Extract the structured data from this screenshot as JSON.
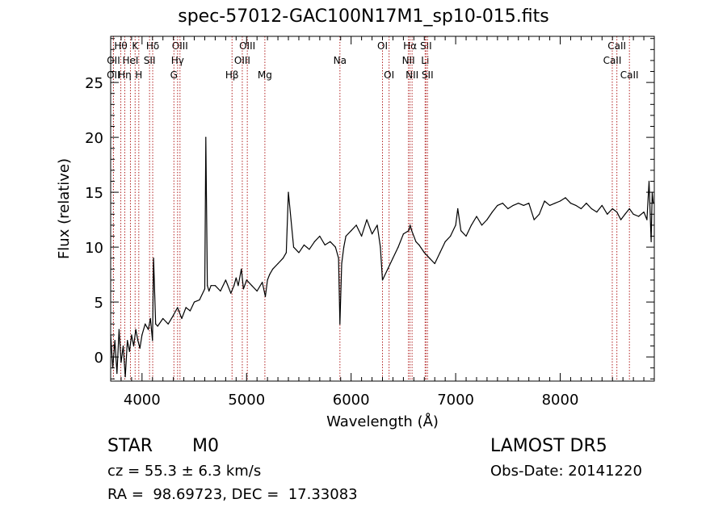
{
  "title": "spec-57012-GAC100N17M1_sp10-015.fits",
  "info": {
    "class": "STAR",
    "subclass": "M0",
    "survey": "LAMOST DR5",
    "cz": "cz = 55.3 ± 6.3 km/s",
    "obs_date": "Obs-Date: 20141220",
    "radec": "RA =  98.69723, DEC =  17.33083"
  },
  "colors": {
    "spectrum": "#000000",
    "line_markers": "#b22222",
    "axes": "#000000"
  },
  "chart_data": {
    "type": "line",
    "xlabel": "Wavelength (Å)",
    "ylabel": "Flux (relative)",
    "xlim": [
      3700,
      8900
    ],
    "ylim": [
      -2.2,
      29.2
    ],
    "xticks": [
      4000,
      5000,
      6000,
      7000,
      8000
    ],
    "yticks": [
      0,
      5,
      10,
      15,
      20,
      25
    ],
    "grid": false,
    "series": [
      {
        "x": [
          3700,
          3720,
          3740,
          3760,
          3780,
          3800,
          3820,
          3840,
          3860,
          3880,
          3900,
          3920,
          3940,
          3960,
          3980,
          4000,
          4030,
          4060,
          4080,
          4100,
          4110,
          4130,
          4150,
          4200,
          4250,
          4300,
          4340,
          4380,
          4420,
          4460,
          4500,
          4550,
          4600,
          4610,
          4625,
          4640,
          4660,
          4700,
          4750,
          4800,
          4850,
          4880,
          4900,
          4920,
          4950,
          4970,
          5000,
          5050,
          5100,
          5150,
          5180,
          5200,
          5220,
          5250,
          5300,
          5350,
          5380,
          5400,
          5450,
          5500,
          5550,
          5600,
          5650,
          5700,
          5750,
          5800,
          5850,
          5880,
          5893,
          5910,
          5930,
          5950,
          6000,
          6050,
          6100,
          6150,
          6200,
          6250,
          6280,
          6300,
          6350,
          6400,
          6450,
          6500,
          6550,
          6564,
          6580,
          6620,
          6650,
          6700,
          6750,
          6800,
          6850,
          6900,
          6950,
          7000,
          7020,
          7050,
          7100,
          7150,
          7200,
          7250,
          7300,
          7350,
          7400,
          7450,
          7500,
          7550,
          7600,
          7650,
          7700,
          7750,
          7800,
          7850,
          7900,
          7950,
          8000,
          8050,
          8100,
          8150,
          8200,
          8250,
          8300,
          8350,
          8400,
          8450,
          8500,
          8542,
          8580,
          8620,
          8662,
          8700,
          8750,
          8800,
          8830,
          8850,
          8870,
          8880,
          8890
        ],
        "y": [
          2.0,
          -1.0,
          1.5,
          -1.5,
          2.5,
          -0.5,
          1.0,
          -1.8,
          1.5,
          0.5,
          2.0,
          1.0,
          2.5,
          1.5,
          0.8,
          2.0,
          3.0,
          2.5,
          3.5,
          1.5,
          9.0,
          3.0,
          2.8,
          3.5,
          3.0,
          3.8,
          4.5,
          3.5,
          4.5,
          4.2,
          5.0,
          5.2,
          6.2,
          20.0,
          6.5,
          6.0,
          6.5,
          6.5,
          6.0,
          7.0,
          5.8,
          6.5,
          7.2,
          6.5,
          8.0,
          6.2,
          7.0,
          6.5,
          6.0,
          6.8,
          5.5,
          7.0,
          7.5,
          8.0,
          8.5,
          9.0,
          9.5,
          15.0,
          10.0,
          9.5,
          10.2,
          9.8,
          10.5,
          11.0,
          10.2,
          10.5,
          10.0,
          9.0,
          3.0,
          8.5,
          10.0,
          11.0,
          11.5,
          12.0,
          11.0,
          12.5,
          11.2,
          12.0,
          10.0,
          7.0,
          8.0,
          9.0,
          10.0,
          11.2,
          11.5,
          12.0,
          11.5,
          10.5,
          10.2,
          9.5,
          9.0,
          8.5,
          9.5,
          10.5,
          11.0,
          12.0,
          13.5,
          11.5,
          11.0,
          12.0,
          12.8,
          12.0,
          12.5,
          13.2,
          13.8,
          14.0,
          13.5,
          13.8,
          14.0,
          13.8,
          14.0,
          12.5,
          13.0,
          14.2,
          13.8,
          14.0,
          14.2,
          14.5,
          14.0,
          13.8,
          13.5,
          14.0,
          13.5,
          13.2,
          13.8,
          13.0,
          13.5,
          13.2,
          12.5,
          13.0,
          13.5,
          13.0,
          12.8,
          13.2,
          12.5,
          16.0,
          10.5,
          15.0,
          14.0
        ]
      }
    ],
    "line_markers": [
      {
        "label": "Hθ",
        "wl": 3797,
        "row": 0
      },
      {
        "label": "K",
        "wl": 3934,
        "row": 0
      },
      {
        "label": "Hδ",
        "wl": 4102,
        "row": 0
      },
      {
        "label": "OIII",
        "wl": 4363,
        "row": 0
      },
      {
        "label": "OIII",
        "wl": 5007,
        "row": 0
      },
      {
        "label": "OI",
        "wl": 6300,
        "row": 0
      },
      {
        "label": "Hα",
        "wl": 6563,
        "row": 0
      },
      {
        "label": "SII",
        "wl": 6716,
        "row": 0
      },
      {
        "label": "CaII",
        "wl": 8542,
        "row": 0
      },
      {
        "label": "OII",
        "wl": 3727,
        "row": 1
      },
      {
        "label": "HeI",
        "wl": 3889,
        "row": 1
      },
      {
        "label": "SII",
        "wl": 4072,
        "row": 1
      },
      {
        "label": "Hγ",
        "wl": 4340,
        "row": 1
      },
      {
        "label": "OIII",
        "wl": 4959,
        "row": 1
      },
      {
        "label": "Na",
        "wl": 5893,
        "row": 1
      },
      {
        "label": "NII",
        "wl": 6548,
        "row": 1
      },
      {
        "label": "Li",
        "wl": 6708,
        "row": 1
      },
      {
        "label": "CaII",
        "wl": 8498,
        "row": 1
      },
      {
        "label": "OII",
        "wl": 3726,
        "row": 2
      },
      {
        "label": "Hη",
        "wl": 3835,
        "row": 2
      },
      {
        "label": "H",
        "wl": 3969,
        "row": 2
      },
      {
        "label": "G",
        "wl": 4305,
        "row": 2
      },
      {
        "label": "Hβ",
        "wl": 4861,
        "row": 2
      },
      {
        "label": "Mg",
        "wl": 5175,
        "row": 2
      },
      {
        "label": "OI",
        "wl": 6363,
        "row": 2
      },
      {
        "label": "NII",
        "wl": 6583,
        "row": 2
      },
      {
        "label": "SII",
        "wl": 6731,
        "row": 2
      },
      {
        "label": "CaII",
        "wl": 8662,
        "row": 2
      }
    ]
  }
}
